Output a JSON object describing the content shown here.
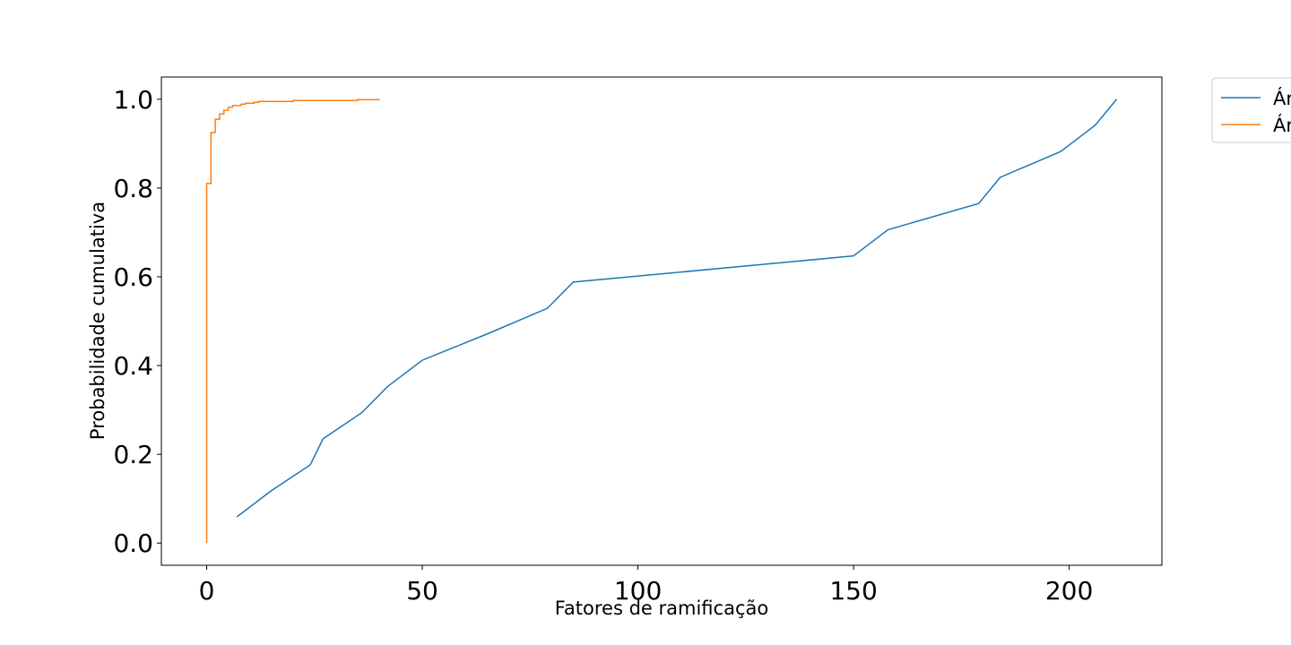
{
  "chart_data": {
    "type": "line",
    "title": "",
    "xlabel": "Fatores de ramificação",
    "ylabel": "Probabilidade cumulativa",
    "xlim": [
      -10.5,
      221.5
    ],
    "ylim": [
      -0.05,
      1.05
    ],
    "x_ticks": [
      0,
      50,
      100,
      150,
      200
    ],
    "y_ticks": [
      0.0,
      0.2,
      0.4,
      0.6,
      0.8,
      1.0
    ],
    "x_tick_labels": [
      "0",
      "50",
      "100",
      "150",
      "200"
    ],
    "y_tick_labels": [
      "0.0",
      "0.2",
      "0.4",
      "0.6",
      "0.8",
      "1.0"
    ],
    "grid": false,
    "legend": {
      "placement": "outside-top-right",
      "entries": [
        "Ár",
        "Ár"
      ]
    },
    "series": [
      {
        "name": "Ár",
        "color": "#1f77b4",
        "step": false,
        "x": [
          7,
          15,
          24,
          27,
          36,
          42,
          50,
          65,
          79,
          85,
          150,
          158,
          179,
          184,
          198,
          206,
          211
        ],
        "y": [
          0.059,
          0.118,
          0.176,
          0.235,
          0.294,
          0.353,
          0.412,
          0.471,
          0.529,
          0.588,
          0.647,
          0.706,
          0.765,
          0.824,
          0.882,
          0.941,
          1.0
        ]
      },
      {
        "name": "Ár",
        "color": "#ff7f0e",
        "step": true,
        "x": [
          0,
          0,
          1,
          2,
          3,
          4,
          5,
          6,
          8,
          9,
          11,
          12,
          20,
          35,
          40
        ],
        "y": [
          0.0,
          0.81,
          0.925,
          0.955,
          0.967,
          0.975,
          0.982,
          0.986,
          0.989,
          0.991,
          0.993,
          0.995,
          0.997,
          0.999,
          1.0
        ]
      }
    ]
  }
}
